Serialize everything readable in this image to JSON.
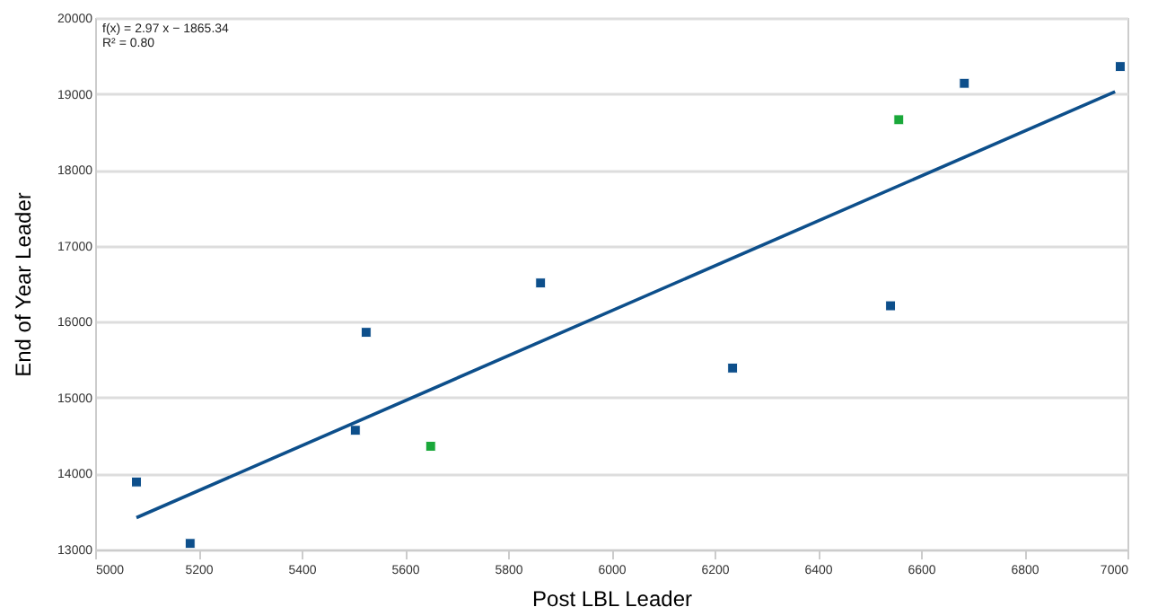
{
  "chart_data": {
    "type": "scatter",
    "xlabel": "Post LBL Leader",
    "ylabel": "End of Year Leader",
    "annotations": [
      "f(x) = 2.97 x − 1865.34",
      "R² = 0.80"
    ],
    "series": [
      {
        "marker": "square",
        "color": "#0d4f8b",
        "x": [
          5080,
          5184,
          5504,
          5525,
          5863,
          6235,
          6541,
          6684,
          6986
        ],
        "values": [
          13890,
          13080,
          14570,
          15860,
          16510,
          15390,
          16210,
          19140,
          19360
        ]
      },
      {
        "marker": "square",
        "color": "#1aa83a",
        "x": [
          5650,
          6557
        ],
        "values": [
          14360,
          18660
        ]
      },
      {
        "type": "line",
        "color": "#0d4f8b",
        "x": [
          5080,
          6976
        ],
        "values": [
          13420,
          19030
        ]
      }
    ],
    "xlim": [
      5000,
      7000
    ],
    "xticks": [
      5000,
      5200,
      5400,
      5600,
      5800,
      6000,
      6200,
      6400,
      6600,
      6800,
      7000
    ],
    "ylim": [
      13000,
      20000
    ],
    "yticks": [
      13000,
      14000,
      15000,
      16000,
      17000,
      18000,
      19000,
      20000
    ],
    "grid": "y",
    "line_style": "solid"
  }
}
